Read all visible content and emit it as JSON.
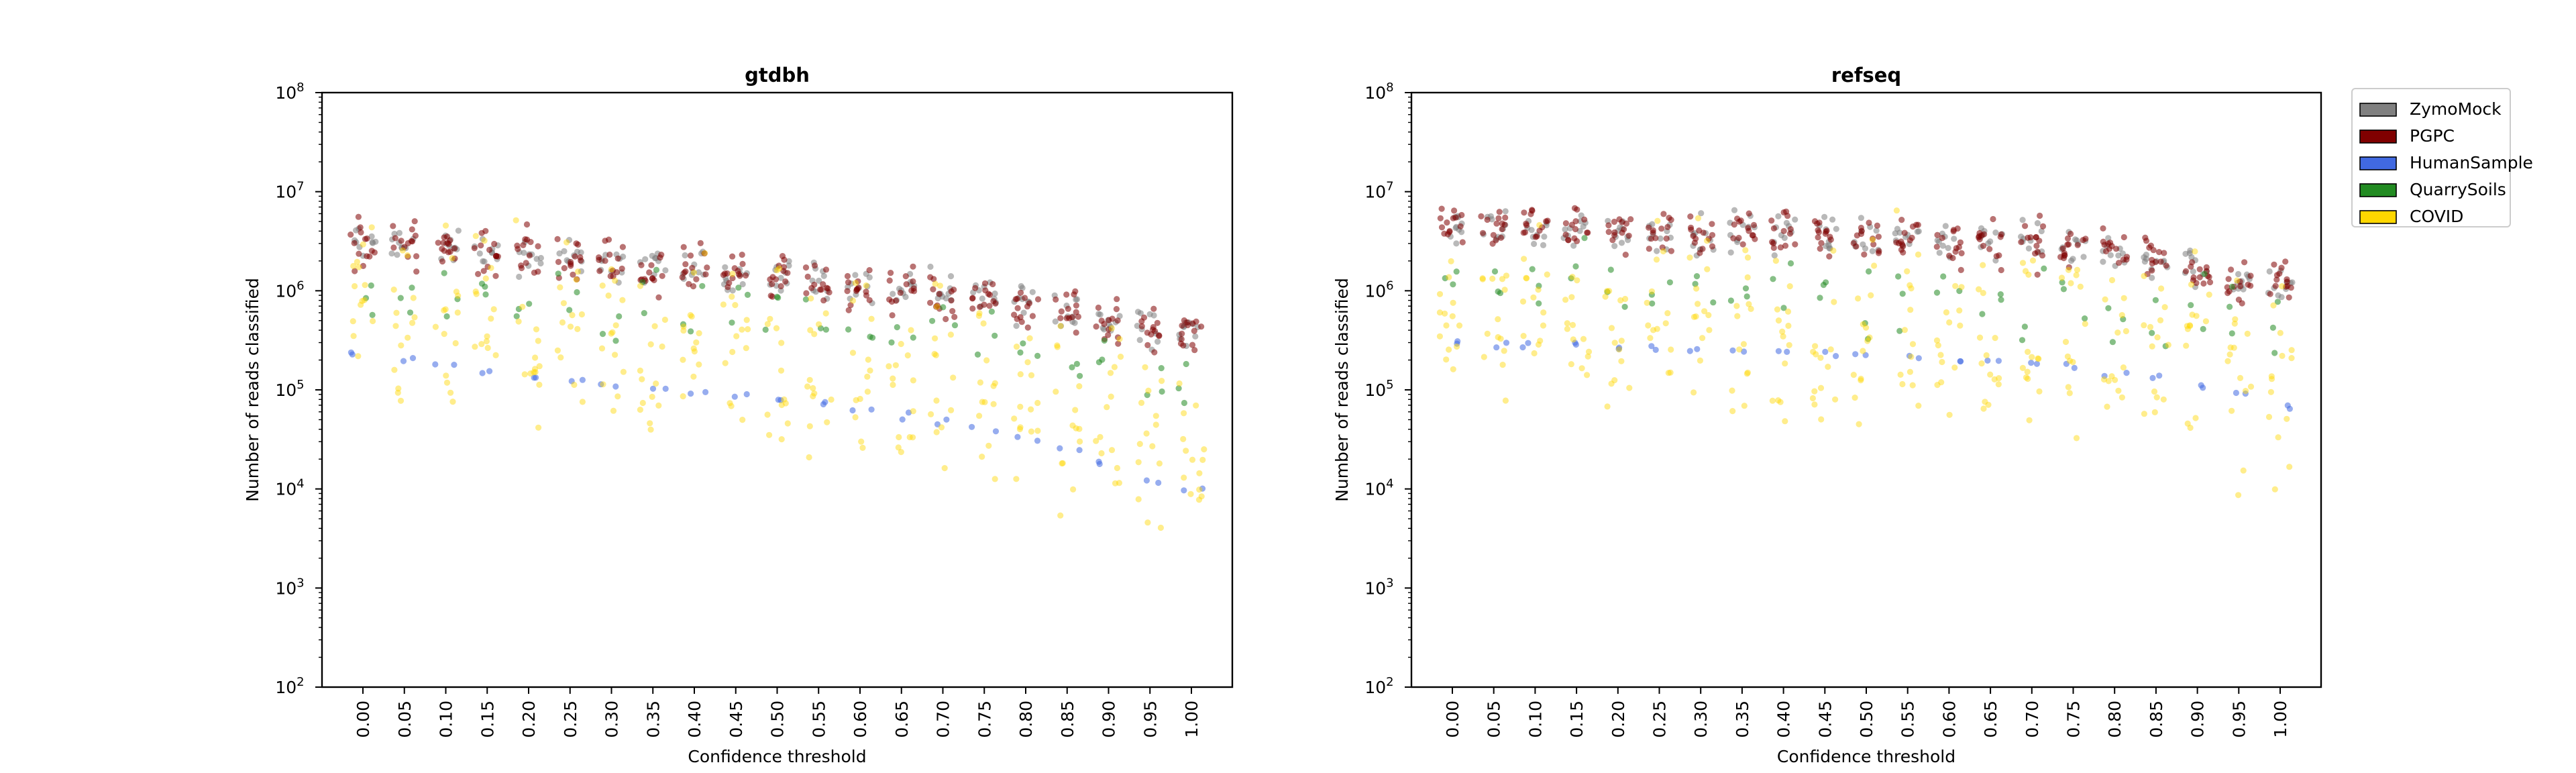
{
  "chart_data": [
    {
      "type": "scatter",
      "title": "gtdbh",
      "xlabel": "Confidence threshold",
      "ylabel": "Number of reads classified",
      "yscale": "log",
      "ylim": [
        100,
        100000000
      ],
      "ytick_exponents": [
        2,
        3,
        4,
        5,
        6,
        7,
        8
      ],
      "categories": [
        "0.00",
        "0.05",
        "0.10",
        "0.15",
        "0.20",
        "0.25",
        "0.30",
        "0.35",
        "0.40",
        "0.45",
        "0.50",
        "0.55",
        "0.60",
        "0.65",
        "0.70",
        "0.75",
        "0.80",
        "0.85",
        "0.90",
        "0.95",
        "1.00"
      ],
      "series": [
        {
          "name": "ZymoMock",
          "median_values": [
            3000000,
            2900000,
            2800000,
            2500000,
            2300000,
            2100000,
            1900000,
            1800000,
            1600000,
            1500000,
            1400000,
            1300000,
            1150000,
            1050000,
            950000,
            850000,
            720000,
            620000,
            520000,
            460000,
            400000
          ]
        },
        {
          "name": "PGPC",
          "median_values": [
            3000000,
            2900000,
            2700000,
            2500000,
            2300000,
            2100000,
            1900000,
            1700000,
            1600000,
            1400000,
            1300000,
            1200000,
            1100000,
            1000000,
            900000,
            800000,
            700000,
            600000,
            480000,
            420000,
            380000
          ]
        },
        {
          "name": "HumanSample",
          "median_values": [
            230000,
            200000,
            180000,
            150000,
            130000,
            120000,
            115000,
            105000,
            98000,
            88000,
            80000,
            70000,
            62000,
            55000,
            48000,
            40000,
            32000,
            26000,
            18000,
            12000,
            9500
          ]
        },
        {
          "name": "QuarrySoils",
          "median_values": [
            900000,
            870000,
            840000,
            800000,
            760000,
            720000,
            680000,
            640000,
            600000,
            560000,
            520000,
            480000,
            440000,
            400000,
            360000,
            310000,
            260000,
            210000,
            160000,
            120000,
            80000
          ]
        },
        {
          "name": "COVID",
          "median_values": [
            400000,
            380000,
            360000,
            340000,
            320000,
            300000,
            280000,
            260000,
            240000,
            220000,
            200000,
            180000,
            160000,
            140000,
            120000,
            100000,
            80000,
            60000,
            45000,
            30000,
            22000
          ]
        }
      ]
    },
    {
      "type": "scatter",
      "title": "refseq",
      "xlabel": "Confidence threshold",
      "ylabel": "Number of reads classified",
      "yscale": "log",
      "ylim": [
        100,
        100000000
      ],
      "ytick_exponents": [
        2,
        3,
        4,
        5,
        6,
        7,
        8
      ],
      "categories": [
        "0.00",
        "0.05",
        "0.10",
        "0.15",
        "0.20",
        "0.25",
        "0.30",
        "0.35",
        "0.40",
        "0.45",
        "0.50",
        "0.55",
        "0.60",
        "0.65",
        "0.70",
        "0.75",
        "0.80",
        "0.85",
        "0.90",
        "0.95",
        "1.00"
      ],
      "series": [
        {
          "name": "ZymoMock",
          "median_values": [
            4500000,
            4400000,
            4300000,
            4200000,
            4100000,
            4000000,
            3900000,
            3800000,
            3700000,
            3600000,
            3500000,
            3400000,
            3300000,
            3200000,
            3000000,
            2800000,
            2500000,
            2100000,
            1700000,
            1400000,
            1200000
          ]
        },
        {
          "name": "PGPC",
          "median_values": [
            4500000,
            4400000,
            4300000,
            4200000,
            4100000,
            4000000,
            3900000,
            3800000,
            3700000,
            3600000,
            3500000,
            3400000,
            3200000,
            3100000,
            3000000,
            2800000,
            2500000,
            2100000,
            1700000,
            1400000,
            1200000
          ]
        },
        {
          "name": "HumanSample",
          "median_values": [
            300000,
            290000,
            285000,
            280000,
            275000,
            270000,
            260000,
            250000,
            240000,
            230000,
            220000,
            210000,
            200000,
            190000,
            180000,
            170000,
            150000,
            130000,
            110000,
            90000,
            70000
          ]
        },
        {
          "name": "QuarrySoils",
          "median_values": [
            1100000,
            1080000,
            1060000,
            1040000,
            1020000,
            1000000,
            980000,
            960000,
            940000,
            920000,
            900000,
            880000,
            860000,
            840000,
            820000,
            780000,
            720000,
            640000,
            560000,
            480000,
            400000
          ]
        },
        {
          "name": "COVID",
          "median_values": [
            500000,
            490000,
            480000,
            470000,
            460000,
            450000,
            440000,
            430000,
            420000,
            410000,
            400000,
            390000,
            380000,
            370000,
            360000,
            340000,
            300000,
            260000,
            220000,
            180000,
            150000
          ]
        }
      ]
    }
  ],
  "legend": {
    "items": [
      {
        "label": "ZymoMock",
        "color": "#808080"
      },
      {
        "label": "PGPC",
        "color": "#800000"
      },
      {
        "label": "HumanSample",
        "color": "#4169e1"
      },
      {
        "label": "QuarrySoils",
        "color": "#228b22"
      },
      {
        "label": "COVID",
        "color": "#ffd700"
      }
    ]
  }
}
